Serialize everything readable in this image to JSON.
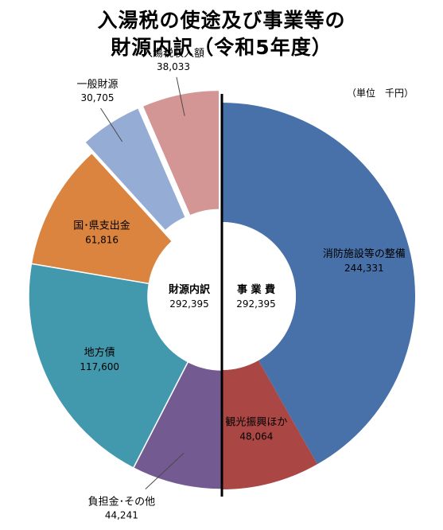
{
  "chart_data": {
    "type": "donut",
    "title": "入湯税の使途及び事業等の",
    "subtitle": "財源内訳（令和5年度）",
    "unit_note": "（単位　千円）",
    "left_center": {
      "label": "財源内訳",
      "value": "292,395"
    },
    "right_center": {
      "label": "事 業 費",
      "value": "292,395"
    },
    "funding_sources": [
      {
        "name": "入湯税収入額",
        "value": 38033,
        "label_value": "38,033",
        "color": "#d49595",
        "exploded": true
      },
      {
        "name": "一般財源",
        "value": 30705,
        "label_value": "30,705",
        "color": "#95acd4",
        "exploded": true
      },
      {
        "name": "国･県支出金",
        "value": 61816,
        "label_value": "61,816",
        "color": "#db843f",
        "exploded": false
      },
      {
        "name": "地方債",
        "value": 117600,
        "label_value": "117,600",
        "color": "#4298ac",
        "exploded": false
      },
      {
        "name": "負担金･その他",
        "value": 44241,
        "label_value": "44,241",
        "color": "#735a91",
        "exploded": false
      }
    ],
    "expenditures": [
      {
        "name": "消防施設等の整備",
        "value": 244331,
        "label_value": "244,331",
        "color": "#4771a8"
      },
      {
        "name": "観光振興ほか",
        "value": 48064,
        "label_value": "48,064",
        "color": "#aa4744"
      }
    ]
  }
}
